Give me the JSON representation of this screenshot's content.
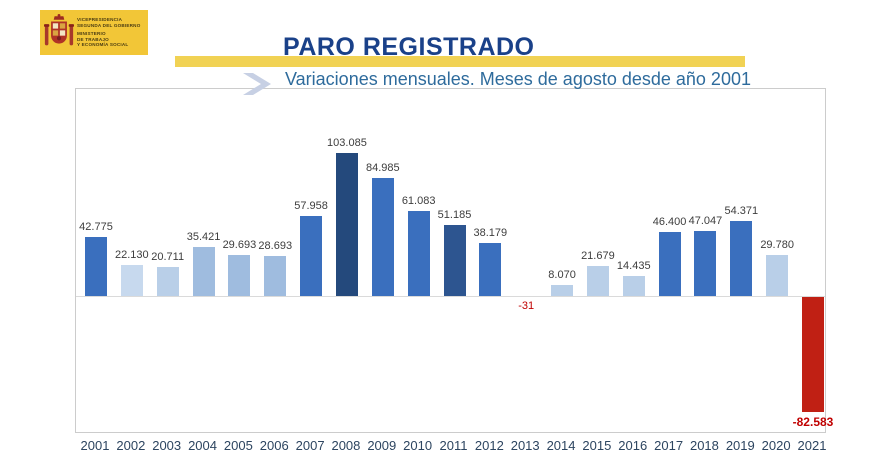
{
  "logo": {
    "lines": [
      "VICEPRESIDENCIA",
      "SEGUNDA DEL GOBIERNO",
      "MINISTERIO",
      "DE TRABAJO",
      "Y ECONOMÍA SOCIAL"
    ],
    "bg_color": "#f2c637"
  },
  "header": {
    "title": "PARO REGISTRADO",
    "subtitle": "Variaciones mensuales. Meses de agosto desde año 2001",
    "band_color": "#f1d254",
    "title_color": "#1a4189",
    "subtitle_color": "#2e6b9c"
  },
  "chart_data": {
    "type": "bar",
    "title": "PARO REGISTRADO",
    "subtitle": "Variaciones mensuales. Meses de agosto desde año 2001",
    "categories": [
      "2001",
      "2002",
      "2003",
      "2004",
      "2005",
      "2006",
      "2007",
      "2008",
      "2009",
      "2010",
      "2011",
      "2012",
      "2013",
      "2014",
      "2015",
      "2016",
      "2017",
      "2018",
      "2019",
      "2020",
      "2021"
    ],
    "values": [
      42775,
      22130,
      20711,
      35421,
      29693,
      28693,
      57958,
      103085,
      84985,
      61083,
      51185,
      38179,
      -31,
      8070,
      21679,
      14435,
      46400,
      47047,
      54371,
      29780,
      -82583
    ],
    "labels": [
      "42.775",
      "22.130",
      "20.711",
      "35.421",
      "29.693",
      "28.693",
      "57.958",
      "103.085",
      "84.985",
      "61.083",
      "51.185",
      "38.179",
      "-31",
      "8.070",
      "21.679",
      "14.435",
      "46.400",
      "47.047",
      "54.371",
      "29.780",
      "-82.583"
    ],
    "bar_colors": [
      "#3a6fbe",
      "#c7d9ee",
      "#b9cfe8",
      "#9fbcdf",
      "#9fbcdf",
      "#9fbcdf",
      "#3a6fbe",
      "#24497c",
      "#3a6fbe",
      "#3a6fbe",
      "#2d5590",
      "#3a6fbe",
      "#3a6fbe",
      "#b9cfe8",
      "#b9cfe8",
      "#b9cfe8",
      "#3a6fbe",
      "#3a6fbe",
      "#3a6fbe",
      "#b9cfe8",
      "#c02014"
    ],
    "negative_label_color": "#c00000",
    "default_label_color": "#3d3d3d",
    "xlabel": "",
    "ylabel": "",
    "ylim": [
      -100000,
      150000
    ],
    "grid": false,
    "legend": false,
    "baseline": 0
  }
}
